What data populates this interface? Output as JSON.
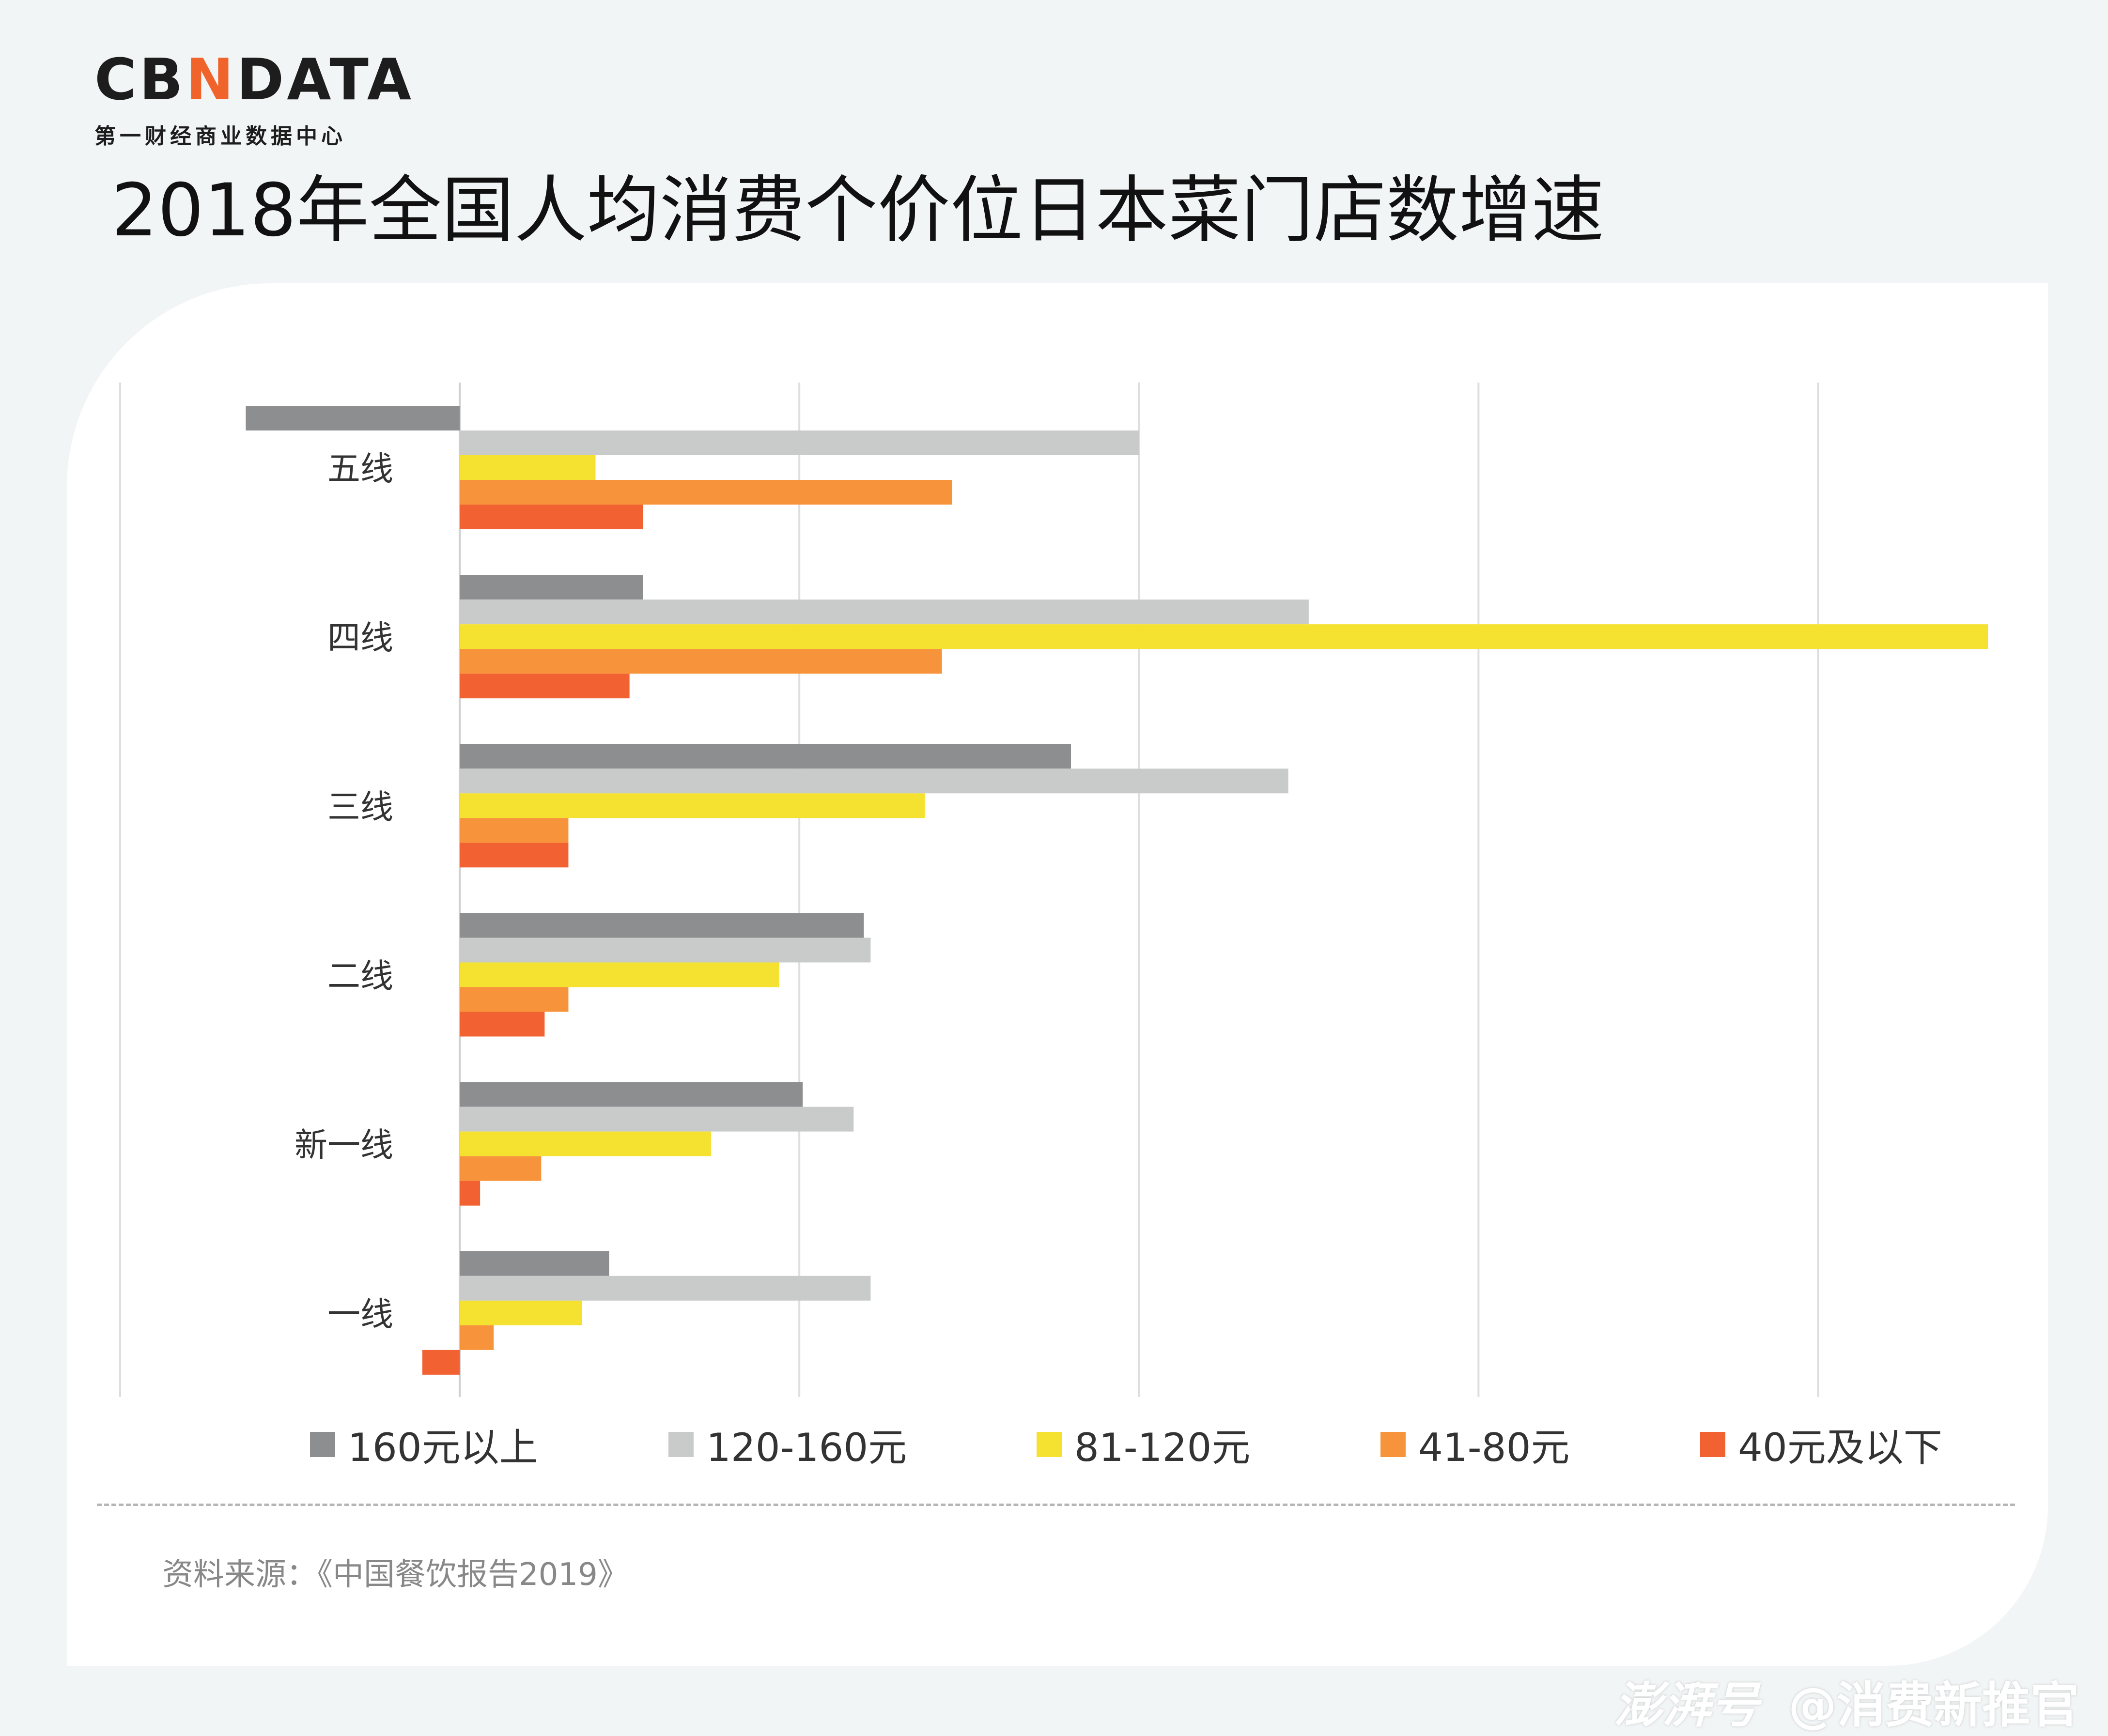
{
  "brand": {
    "logo_pre": "CB",
    "logo_accent": "N",
    "logo_post": "DATA",
    "logo_sub": "第一财经商业数据中心"
  },
  "title": "2018年全国人均消费个价位日本菜门店数增速",
  "source": "资料来源：《中国餐饮报告2019》",
  "watermark": {
    "logo": "澎湃号",
    "handle": "@消费新推官"
  },
  "chart_data": {
    "type": "bar",
    "orientation": "horizontal",
    "title": "2018年全国人均消费个价位日本菜门店数增速",
    "xlabel": "",
    "ylabel": "",
    "xlim": [
      -100,
      450
    ],
    "grid": true,
    "legend": "bottom",
    "categories": [
      "五线",
      "四线",
      "三线",
      "二线",
      "新一线",
      "一线"
    ],
    "series": [
      {
        "name": "160元以上",
        "color": "#8c8e90",
        "values": [
          -63,
          54,
          180,
          119,
          101,
          44
        ]
      },
      {
        "name": "120-160元",
        "color": "#c9cbcb",
        "values": [
          200,
          250,
          244,
          121,
          116,
          121
        ]
      },
      {
        "name": "81-120元",
        "color": "#f5e12f",
        "values": [
          40,
          450,
          137,
          94,
          74,
          36
        ]
      },
      {
        "name": "41-80元",
        "color": "#f7943b",
        "values": [
          145,
          142,
          32,
          32,
          24,
          10
        ]
      },
      {
        "name": "40元及以下",
        "color": "#f26132",
        "values": [
          54,
          50,
          32,
          25,
          6,
          -11
        ]
      }
    ]
  }
}
